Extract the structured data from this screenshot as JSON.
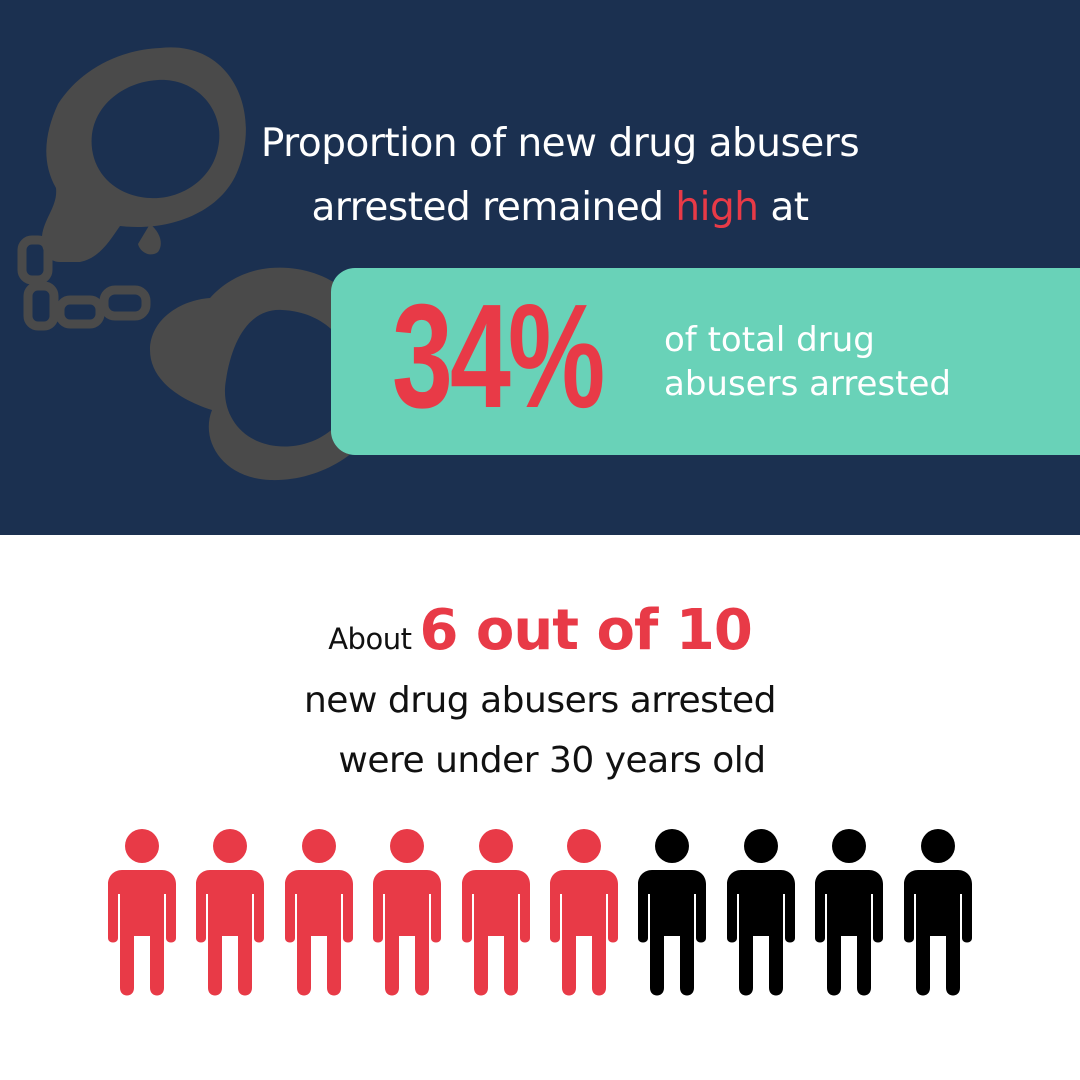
{
  "headline": {
    "line1": "Proportion of new drug abusers",
    "line2_before": "arrested remained ",
    "line2_highlight": "high",
    "line2_after": " at"
  },
  "stat": {
    "value": "34%",
    "caption_line1": "of total drug",
    "caption_line2": "abusers arrested"
  },
  "ratio": {
    "prefix": "About",
    "value": "6 out of 10",
    "line1": "new drug abusers arrested",
    "line2": "were under 30 years old"
  },
  "pictogram": {
    "total": 10,
    "highlighted": 6,
    "highlight_color": "#e83a47",
    "other_color": "#000000"
  },
  "colors": {
    "navy": "#1b3050",
    "mint": "#69d2b8",
    "red": "#e83a47",
    "handcuff": "#4a4a4a"
  },
  "icons": [
    "handcuffs-icon",
    "person-icon"
  ]
}
